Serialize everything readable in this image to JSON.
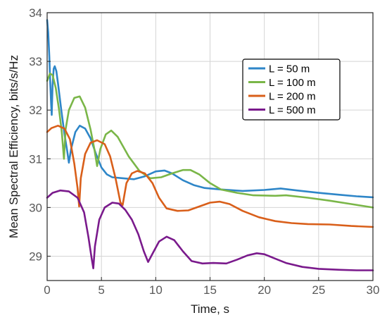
{
  "chart_data": {
    "type": "line",
    "title": "",
    "xlabel": "Time, s",
    "ylabel": "Mean Spectral Efficiency, bits/s/Hz",
    "xlim": [
      0,
      30
    ],
    "ylim": [
      28.5,
      34
    ],
    "xticks": [
      0,
      5,
      10,
      15,
      20,
      25,
      30
    ],
    "yticks": [
      29,
      30,
      31,
      32,
      33,
      34
    ],
    "grid": true,
    "legend_position": "top-right",
    "series": [
      {
        "name": "L = 50 m",
        "color": "#2e86c8",
        "points": [
          [
            0.0,
            33.85
          ],
          [
            0.1,
            33.6
          ],
          [
            0.2,
            33.1
          ],
          [
            0.28,
            32.6
          ],
          [
            0.36,
            32.15
          ],
          [
            0.42,
            31.9
          ],
          [
            0.5,
            32.5
          ],
          [
            0.6,
            32.85
          ],
          [
            0.7,
            32.9
          ],
          [
            0.85,
            32.8
          ],
          [
            1.0,
            32.55
          ],
          [
            1.3,
            32.0
          ],
          [
            1.6,
            31.5
          ],
          [
            1.85,
            31.15
          ],
          [
            2.0,
            30.92
          ],
          [
            2.2,
            31.2
          ],
          [
            2.6,
            31.55
          ],
          [
            3.0,
            31.68
          ],
          [
            3.5,
            31.62
          ],
          [
            4.0,
            31.42
          ],
          [
            4.5,
            31.1
          ],
          [
            5.0,
            30.82
          ],
          [
            5.5,
            30.68
          ],
          [
            6.0,
            30.62
          ],
          [
            7.0,
            30.6
          ],
          [
            8.0,
            30.58
          ],
          [
            9.0,
            30.64
          ],
          [
            10.0,
            30.74
          ],
          [
            10.8,
            30.76
          ],
          [
            11.5,
            30.7
          ],
          [
            12.5,
            30.56
          ],
          [
            13.5,
            30.46
          ],
          [
            14.5,
            30.4
          ],
          [
            16.0,
            30.37
          ],
          [
            18.0,
            30.34
          ],
          [
            20.0,
            30.36
          ],
          [
            21.5,
            30.39
          ],
          [
            23.0,
            30.35
          ],
          [
            25.0,
            30.3
          ],
          [
            27.0,
            30.26
          ],
          [
            28.5,
            30.23
          ],
          [
            30.0,
            30.21
          ]
        ]
      },
      {
        "name": "L = 100 m",
        "color": "#7ab648",
        "points": [
          [
            0.0,
            32.6
          ],
          [
            0.25,
            32.75
          ],
          [
            0.5,
            32.72
          ],
          [
            0.8,
            32.45
          ],
          [
            1.1,
            32.0
          ],
          [
            1.35,
            31.55
          ],
          [
            1.55,
            31.0
          ],
          [
            1.7,
            31.6
          ],
          [
            2.0,
            32.0
          ],
          [
            2.5,
            32.25
          ],
          [
            3.0,
            32.28
          ],
          [
            3.5,
            32.05
          ],
          [
            4.0,
            31.6
          ],
          [
            4.35,
            31.2
          ],
          [
            4.6,
            30.85
          ],
          [
            4.9,
            31.2
          ],
          [
            5.4,
            31.5
          ],
          [
            5.9,
            31.58
          ],
          [
            6.5,
            31.45
          ],
          [
            7.5,
            31.05
          ],
          [
            8.5,
            30.75
          ],
          [
            9.5,
            30.6
          ],
          [
            10.5,
            30.62
          ],
          [
            11.5,
            30.7
          ],
          [
            12.5,
            30.77
          ],
          [
            13.2,
            30.77
          ],
          [
            14.0,
            30.68
          ],
          [
            15.0,
            30.5
          ],
          [
            16.0,
            30.37
          ],
          [
            17.5,
            30.3
          ],
          [
            19.0,
            30.25
          ],
          [
            21.0,
            30.24
          ],
          [
            22.0,
            30.25
          ],
          [
            24.0,
            30.2
          ],
          [
            26.0,
            30.14
          ],
          [
            28.0,
            30.07
          ],
          [
            30.0,
            30.0
          ]
        ]
      },
      {
        "name": "L = 200 m",
        "color": "#d95f1a",
        "points": [
          [
            0.0,
            31.55
          ],
          [
            0.4,
            31.63
          ],
          [
            1.0,
            31.68
          ],
          [
            1.6,
            31.62
          ],
          [
            2.1,
            31.4
          ],
          [
            2.5,
            30.9
          ],
          [
            2.8,
            30.4
          ],
          [
            2.95,
            30.02
          ],
          [
            3.1,
            30.6
          ],
          [
            3.5,
            31.1
          ],
          [
            4.0,
            31.33
          ],
          [
            4.6,
            31.38
          ],
          [
            5.3,
            31.3
          ],
          [
            5.8,
            31.05
          ],
          [
            6.3,
            30.6
          ],
          [
            6.75,
            30.1
          ],
          [
            6.95,
            30.05
          ],
          [
            7.3,
            30.5
          ],
          [
            7.8,
            30.7
          ],
          [
            8.3,
            30.75
          ],
          [
            9.0,
            30.7
          ],
          [
            9.7,
            30.5
          ],
          [
            10.3,
            30.2
          ],
          [
            11.0,
            29.98
          ],
          [
            12.0,
            29.93
          ],
          [
            13.0,
            29.94
          ],
          [
            14.0,
            30.02
          ],
          [
            15.0,
            30.1
          ],
          [
            15.9,
            30.12
          ],
          [
            16.8,
            30.07
          ],
          [
            18.0,
            29.93
          ],
          [
            19.5,
            29.8
          ],
          [
            21.0,
            29.72
          ],
          [
            22.5,
            29.68
          ],
          [
            24.0,
            29.66
          ],
          [
            26.0,
            29.65
          ],
          [
            28.0,
            29.62
          ],
          [
            30.0,
            29.6
          ]
        ]
      },
      {
        "name": "L = 500 m",
        "color": "#7a1a8c",
        "points": [
          [
            0.0,
            30.2
          ],
          [
            0.5,
            30.3
          ],
          [
            1.2,
            30.35
          ],
          [
            2.0,
            30.33
          ],
          [
            2.8,
            30.2
          ],
          [
            3.4,
            29.9
          ],
          [
            3.8,
            29.4
          ],
          [
            4.1,
            28.95
          ],
          [
            4.25,
            28.75
          ],
          [
            4.4,
            29.2
          ],
          [
            4.8,
            29.75
          ],
          [
            5.3,
            30.0
          ],
          [
            6.0,
            30.1
          ],
          [
            6.6,
            30.08
          ],
          [
            7.2,
            29.95
          ],
          [
            7.8,
            29.75
          ],
          [
            8.4,
            29.45
          ],
          [
            8.9,
            29.1
          ],
          [
            9.3,
            28.88
          ],
          [
            9.7,
            29.05
          ],
          [
            10.3,
            29.3
          ],
          [
            11.0,
            29.4
          ],
          [
            11.7,
            29.33
          ],
          [
            12.5,
            29.1
          ],
          [
            13.3,
            28.9
          ],
          [
            14.3,
            28.85
          ],
          [
            15.3,
            28.86
          ],
          [
            16.5,
            28.85
          ],
          [
            17.5,
            28.93
          ],
          [
            18.5,
            29.02
          ],
          [
            19.3,
            29.06
          ],
          [
            20.0,
            29.04
          ],
          [
            21.0,
            28.95
          ],
          [
            22.0,
            28.86
          ],
          [
            23.5,
            28.78
          ],
          [
            25.0,
            28.74
          ],
          [
            27.0,
            28.72
          ],
          [
            28.5,
            28.71
          ],
          [
            30.0,
            28.71
          ]
        ]
      }
    ]
  }
}
